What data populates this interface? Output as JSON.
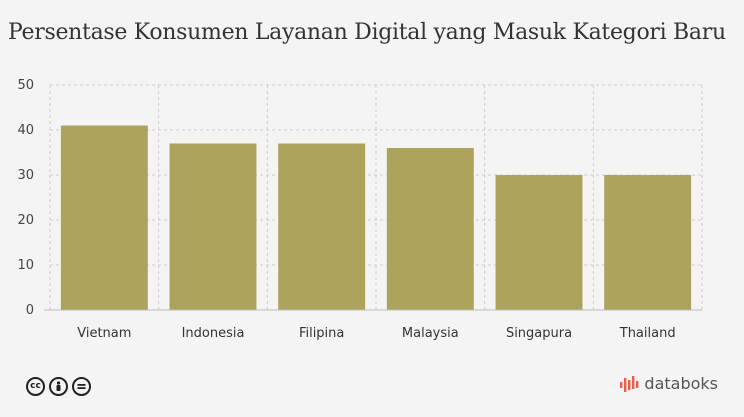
{
  "title": "Persentase Konsumen Layanan Digital yang Masuk Kategori Baru",
  "brand": "databoks",
  "colors": {
    "bar": "#aea35c",
    "grid": "#cccccc",
    "axis": "#bbbbbb"
  },
  "icons": [
    "creative-commons-icon",
    "attribution-icon",
    "no-derivatives-icon"
  ],
  "chart_data": {
    "type": "bar",
    "categories": [
      "Vietnam",
      "Indonesia",
      "Filipina",
      "Malaysia",
      "Singapura",
      "Thailand"
    ],
    "values": [
      41,
      37,
      37,
      36,
      30,
      30
    ],
    "ylim": [
      0,
      50
    ],
    "yticks": [
      0,
      10,
      20,
      30,
      40,
      50
    ],
    "grid": true,
    "legend": "none"
  }
}
